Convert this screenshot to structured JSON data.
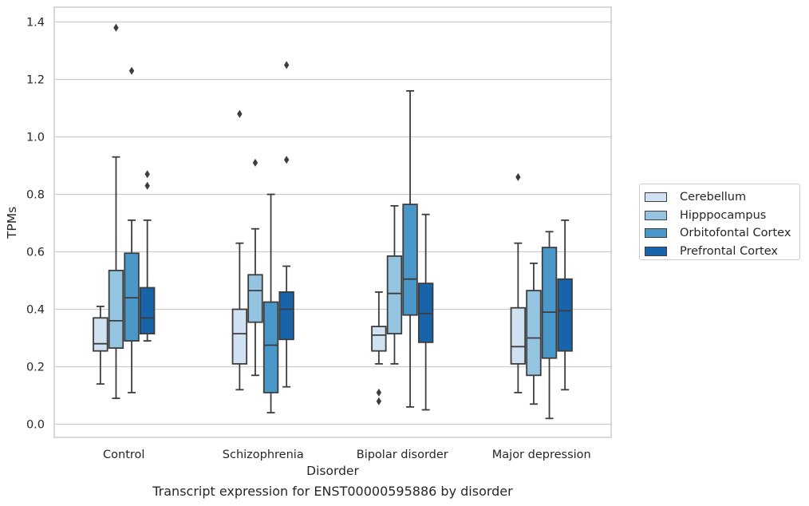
{
  "chart_data": {
    "type": "box",
    "xlabel": "Disorder",
    "ylabel": "TPMs",
    "ylim": [
      -0.045,
      1.45
    ],
    "yticks": [
      "0.0",
      "0.2",
      "0.4",
      "0.6",
      "0.8",
      "1.0",
      "1.2",
      "1.4"
    ],
    "categories": [
      "Control",
      "Schizophrenia",
      "Bipolar disorder",
      "Major depression"
    ],
    "grid": true,
    "legend_position": "right",
    "series": [
      {
        "name": "Cerebellum",
        "color": "#d0e1f2",
        "boxes": [
          {
            "whislo": 0.14,
            "q1": 0.255,
            "med": 0.28,
            "q3": 0.37,
            "whishi": 0.41,
            "fliers": []
          },
          {
            "whislo": 0.12,
            "q1": 0.21,
            "med": 0.315,
            "q3": 0.4,
            "whishi": 0.63,
            "fliers": [
              1.08
            ]
          },
          {
            "whislo": 0.21,
            "q1": 0.255,
            "med": 0.31,
            "q3": 0.34,
            "whishi": 0.46,
            "fliers": [
              0.11,
              0.08
            ]
          },
          {
            "whislo": 0.11,
            "q1": 0.21,
            "med": 0.27,
            "q3": 0.405,
            "whishi": 0.63,
            "fliers": [
              0.86
            ]
          }
        ]
      },
      {
        "name": "Hipppocampus",
        "color": "#94c4df",
        "boxes": [
          {
            "whislo": 0.09,
            "q1": 0.265,
            "med": 0.36,
            "q3": 0.535,
            "whishi": 0.93,
            "fliers": [
              1.38
            ]
          },
          {
            "whislo": 0.17,
            "q1": 0.355,
            "med": 0.465,
            "q3": 0.52,
            "whishi": 0.68,
            "fliers": [
              0.91
            ]
          },
          {
            "whislo": 0.21,
            "q1": 0.315,
            "med": 0.455,
            "q3": 0.585,
            "whishi": 0.76,
            "fliers": []
          },
          {
            "whislo": 0.07,
            "q1": 0.17,
            "med": 0.3,
            "q3": 0.465,
            "whishi": 0.56,
            "fliers": []
          }
        ]
      },
      {
        "name": "Orbitofontal Cortex",
        "color": "#4a98c9",
        "boxes": [
          {
            "whislo": 0.11,
            "q1": 0.29,
            "med": 0.44,
            "q3": 0.595,
            "whishi": 0.71,
            "fliers": [
              1.23
            ]
          },
          {
            "whislo": 0.04,
            "q1": 0.11,
            "med": 0.275,
            "q3": 0.425,
            "whishi": 0.8,
            "fliers": []
          },
          {
            "whislo": 0.06,
            "q1": 0.38,
            "med": 0.505,
            "q3": 0.765,
            "whishi": 1.16,
            "fliers": []
          },
          {
            "whislo": 0.02,
            "q1": 0.23,
            "med": 0.39,
            "q3": 0.615,
            "whishi": 0.67,
            "fliers": []
          }
        ]
      },
      {
        "name": "Prefrontal Cortex",
        "color": "#1764ab",
        "boxes": [
          {
            "whislo": 0.29,
            "q1": 0.315,
            "med": 0.37,
            "q3": 0.475,
            "whishi": 0.71,
            "fliers": [
              0.87,
              0.83
            ]
          },
          {
            "whislo": 0.13,
            "q1": 0.295,
            "med": 0.4,
            "q3": 0.46,
            "whishi": 0.55,
            "fliers": [
              1.25,
              0.92
            ]
          },
          {
            "whislo": 0.05,
            "q1": 0.285,
            "med": 0.385,
            "q3": 0.49,
            "whishi": 0.73,
            "fliers": []
          },
          {
            "whislo": 0.12,
            "q1": 0.255,
            "med": 0.395,
            "q3": 0.505,
            "whishi": 0.71,
            "fliers": []
          }
        ]
      }
    ]
  },
  "caption": "Transcript expression for ENST00000595886 by disorder"
}
